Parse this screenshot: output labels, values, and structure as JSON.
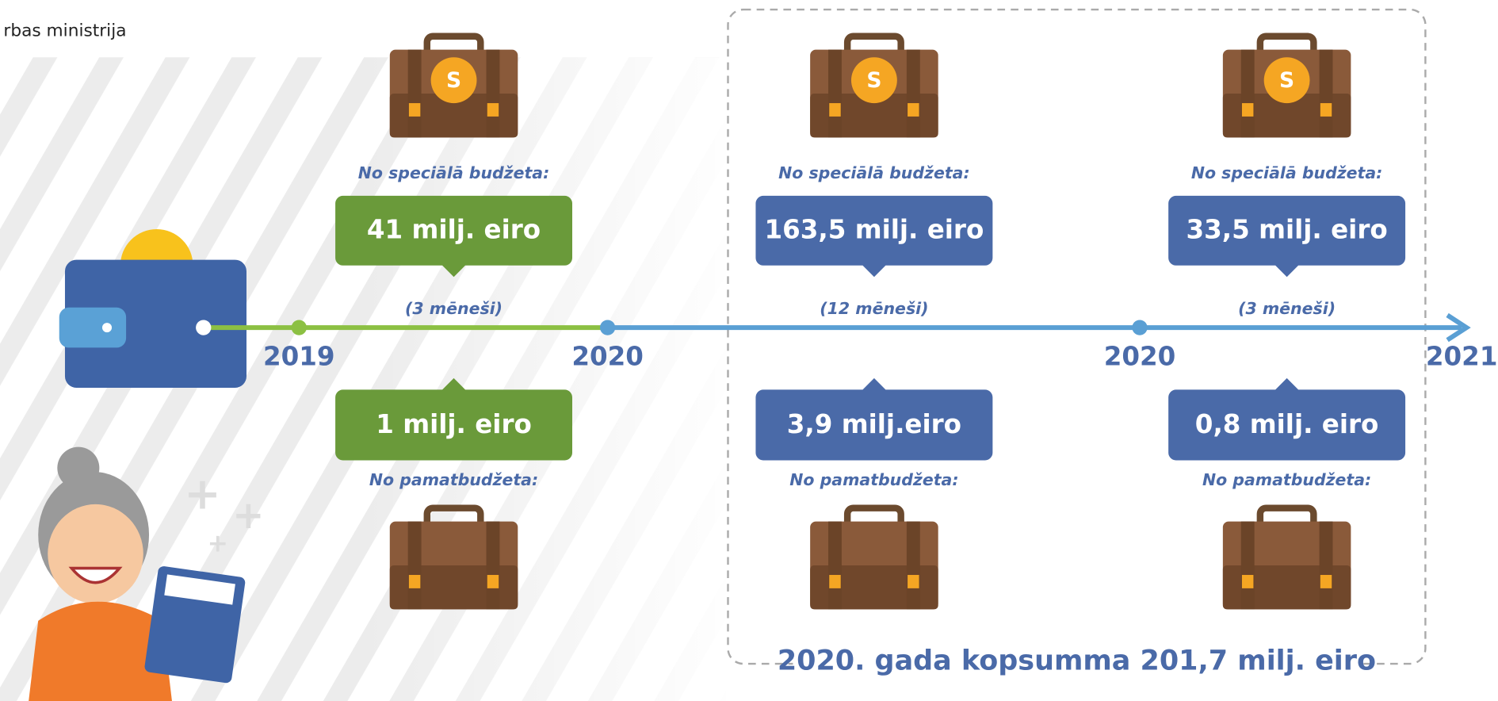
{
  "header": {
    "logo_text": "rbas ministrija"
  },
  "timeline": {
    "years": [
      "2019",
      "2020",
      "2020",
      "2021"
    ]
  },
  "columns": [
    {
      "top_label": "No speciālā budžeta:",
      "top_amount": "41 milj. eiro",
      "duration": "(3 mēneši)",
      "bottom_amount": "1 milj. eiro",
      "bottom_label": "No pamatbudžeta:"
    },
    {
      "top_label": "No speciālā budžeta:",
      "top_amount": "163,5 milj. eiro",
      "duration": "(12 mēneši)",
      "bottom_amount": "3,9 milj.eiro",
      "bottom_label": "No pamatbudžeta:"
    },
    {
      "top_label": "No speciālā budžeta:",
      "top_amount": "33,5 milj. eiro",
      "duration": "(3 mēneši)",
      "bottom_amount": "0,8 milj. eiro",
      "bottom_label": "No pamatbudžeta:"
    }
  ],
  "footer": {
    "total": "2020. gada kopsumma 201,7 milj. eiro"
  }
}
